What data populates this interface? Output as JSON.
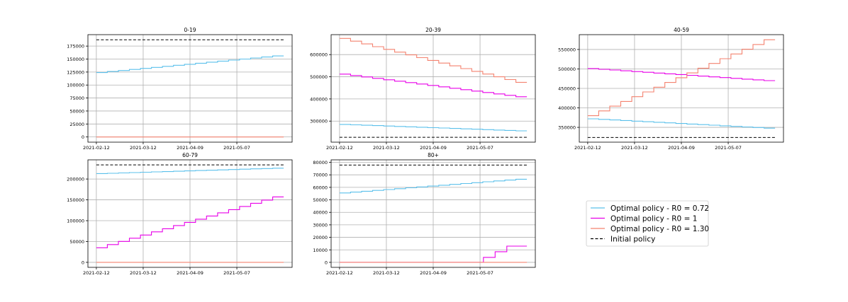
{
  "legend": {
    "placement": "bottom-right",
    "items": [
      {
        "label": "Optimal policy - R0 = 0.72",
        "color": "#5bc0eb",
        "dash": false
      },
      {
        "label": "Optimal policy - R0 = 1",
        "color": "#e800e8",
        "dash": false
      },
      {
        "label": "Optimal policy - R0 = 1.30",
        "color": "#f4826f",
        "dash": false
      },
      {
        "label": "Initial policy",
        "color": "#000000",
        "dash": true
      }
    ]
  },
  "chart_data": [
    {
      "type": "line",
      "title": "0-19",
      "grid": true,
      "x_range": [
        "2021-02-12",
        "2021-06-04"
      ],
      "x_ticks": [
        "2021-02-12",
        "2021-03-12",
        "2021-04-09",
        "2021-05-07"
      ],
      "ylim": [
        -10000,
        197000
      ],
      "y_ticks": [
        0,
        25000,
        50000,
        75000,
        100000,
        125000,
        150000,
        175000
      ],
      "y_tick_labels": [
        "0",
        "25000",
        "50000",
        "75000",
        "100000",
        "125000",
        "150000",
        "175000"
      ],
      "series": [
        {
          "color": "#5bc0eb",
          "step": true,
          "values": [
            124000,
            156000
          ]
        },
        {
          "color": "#f4826f",
          "step": false,
          "values": [
            0,
            0
          ]
        },
        {
          "color": "#000000",
          "dashed": true,
          "values": [
            187000,
            187000
          ]
        }
      ]
    },
    {
      "type": "line",
      "title": "20-39",
      "grid": true,
      "x_range": [
        "2021-02-12",
        "2021-06-04"
      ],
      "x_ticks": [
        "2021-02-12",
        "2021-03-12",
        "2021-04-09",
        "2021-05-07"
      ],
      "ylim": [
        205000,
        690000
      ],
      "y_ticks": [
        300000,
        400000,
        500000,
        600000
      ],
      "y_tick_labels": [
        "300000",
        "400000",
        "500000",
        "600000"
      ],
      "series": [
        {
          "color": "#5bc0eb",
          "step": true,
          "values": [
            285000,
            256000
          ]
        },
        {
          "color": "#e800e8",
          "step": true,
          "values": [
            512000,
            410000
          ]
        },
        {
          "color": "#f4826f",
          "step": true,
          "values": [
            673000,
            475000
          ]
        },
        {
          "color": "#000000",
          "dashed": true,
          "values": [
            227000,
            227000
          ]
        }
      ]
    },
    {
      "type": "line",
      "title": "40-59",
      "grid": true,
      "x_range": [
        "2021-02-12",
        "2021-06-04"
      ],
      "x_ticks": [
        "2021-02-12",
        "2021-03-12",
        "2021-04-09",
        "2021-05-07"
      ],
      "ylim": [
        312000,
        588000
      ],
      "y_ticks": [
        350000,
        400000,
        450000,
        500000,
        550000
      ],
      "y_tick_labels": [
        "350000",
        "400000",
        "450000",
        "500000",
        "550000"
      ],
      "series": [
        {
          "color": "#5bc0eb",
          "step": true,
          "values": [
            372000,
            348000
          ]
        },
        {
          "color": "#e800e8",
          "step": true,
          "values": [
            501000,
            470000
          ]
        },
        {
          "color": "#f4826f",
          "step": true,
          "values": [
            380000,
            575000
          ]
        },
        {
          "color": "#000000",
          "dashed": true,
          "values": [
            324000,
            324000
          ]
        }
      ]
    },
    {
      "type": "line",
      "title": "60-79",
      "grid": true,
      "x_range": [
        "2021-02-12",
        "2021-06-04"
      ],
      "x_ticks": [
        "2021-02-12",
        "2021-03-12",
        "2021-04-09",
        "2021-05-07"
      ],
      "ylim": [
        -12000,
        246000
      ],
      "y_ticks": [
        0,
        50000,
        100000,
        150000,
        200000
      ],
      "y_tick_labels": [
        "0",
        "50000",
        "100000",
        "150000",
        "200000"
      ],
      "series": [
        {
          "color": "#5bc0eb",
          "step": true,
          "values": [
            213000,
            226000
          ]
        },
        {
          "color": "#e800e8",
          "step": true,
          "values": [
            35000,
            157000
          ]
        },
        {
          "color": "#f4826f",
          "step": false,
          "values": [
            0,
            0
          ]
        },
        {
          "color": "#000000",
          "dashed": true,
          "values": [
            234000,
            234000
          ]
        }
      ]
    },
    {
      "type": "line",
      "title": "80+",
      "grid": true,
      "x_range": [
        "2021-02-12",
        "2021-06-04"
      ],
      "x_ticks": [
        "2021-02-12",
        "2021-03-12",
        "2021-04-09",
        "2021-05-07"
      ],
      "ylim": [
        -4000,
        82000
      ],
      "y_ticks": [
        0,
        10000,
        20000,
        30000,
        40000,
        50000,
        60000,
        70000,
        80000
      ],
      "y_tick_labels": [
        "0",
        "10000",
        "20000",
        "30000",
        "40000",
        "50000",
        "60000",
        "70000",
        "80000"
      ],
      "series": [
        {
          "color": "#5bc0eb",
          "step": true,
          "values": [
            55500,
            66500
          ]
        },
        {
          "color": "#e800e8",
          "step": true,
          "start_date": "2021-05-02",
          "steps": [
            [
              0,
              0
            ],
            [
              1,
              4000
            ],
            [
              2,
              8500
            ],
            [
              3,
              13000
            ]
          ],
          "end_value": 13000
        },
        {
          "color": "#f4826f",
          "step": false,
          "values": [
            0,
            0
          ]
        },
        {
          "color": "#000000",
          "dashed": true,
          "values": [
            77800,
            77800
          ]
        }
      ]
    }
  ]
}
